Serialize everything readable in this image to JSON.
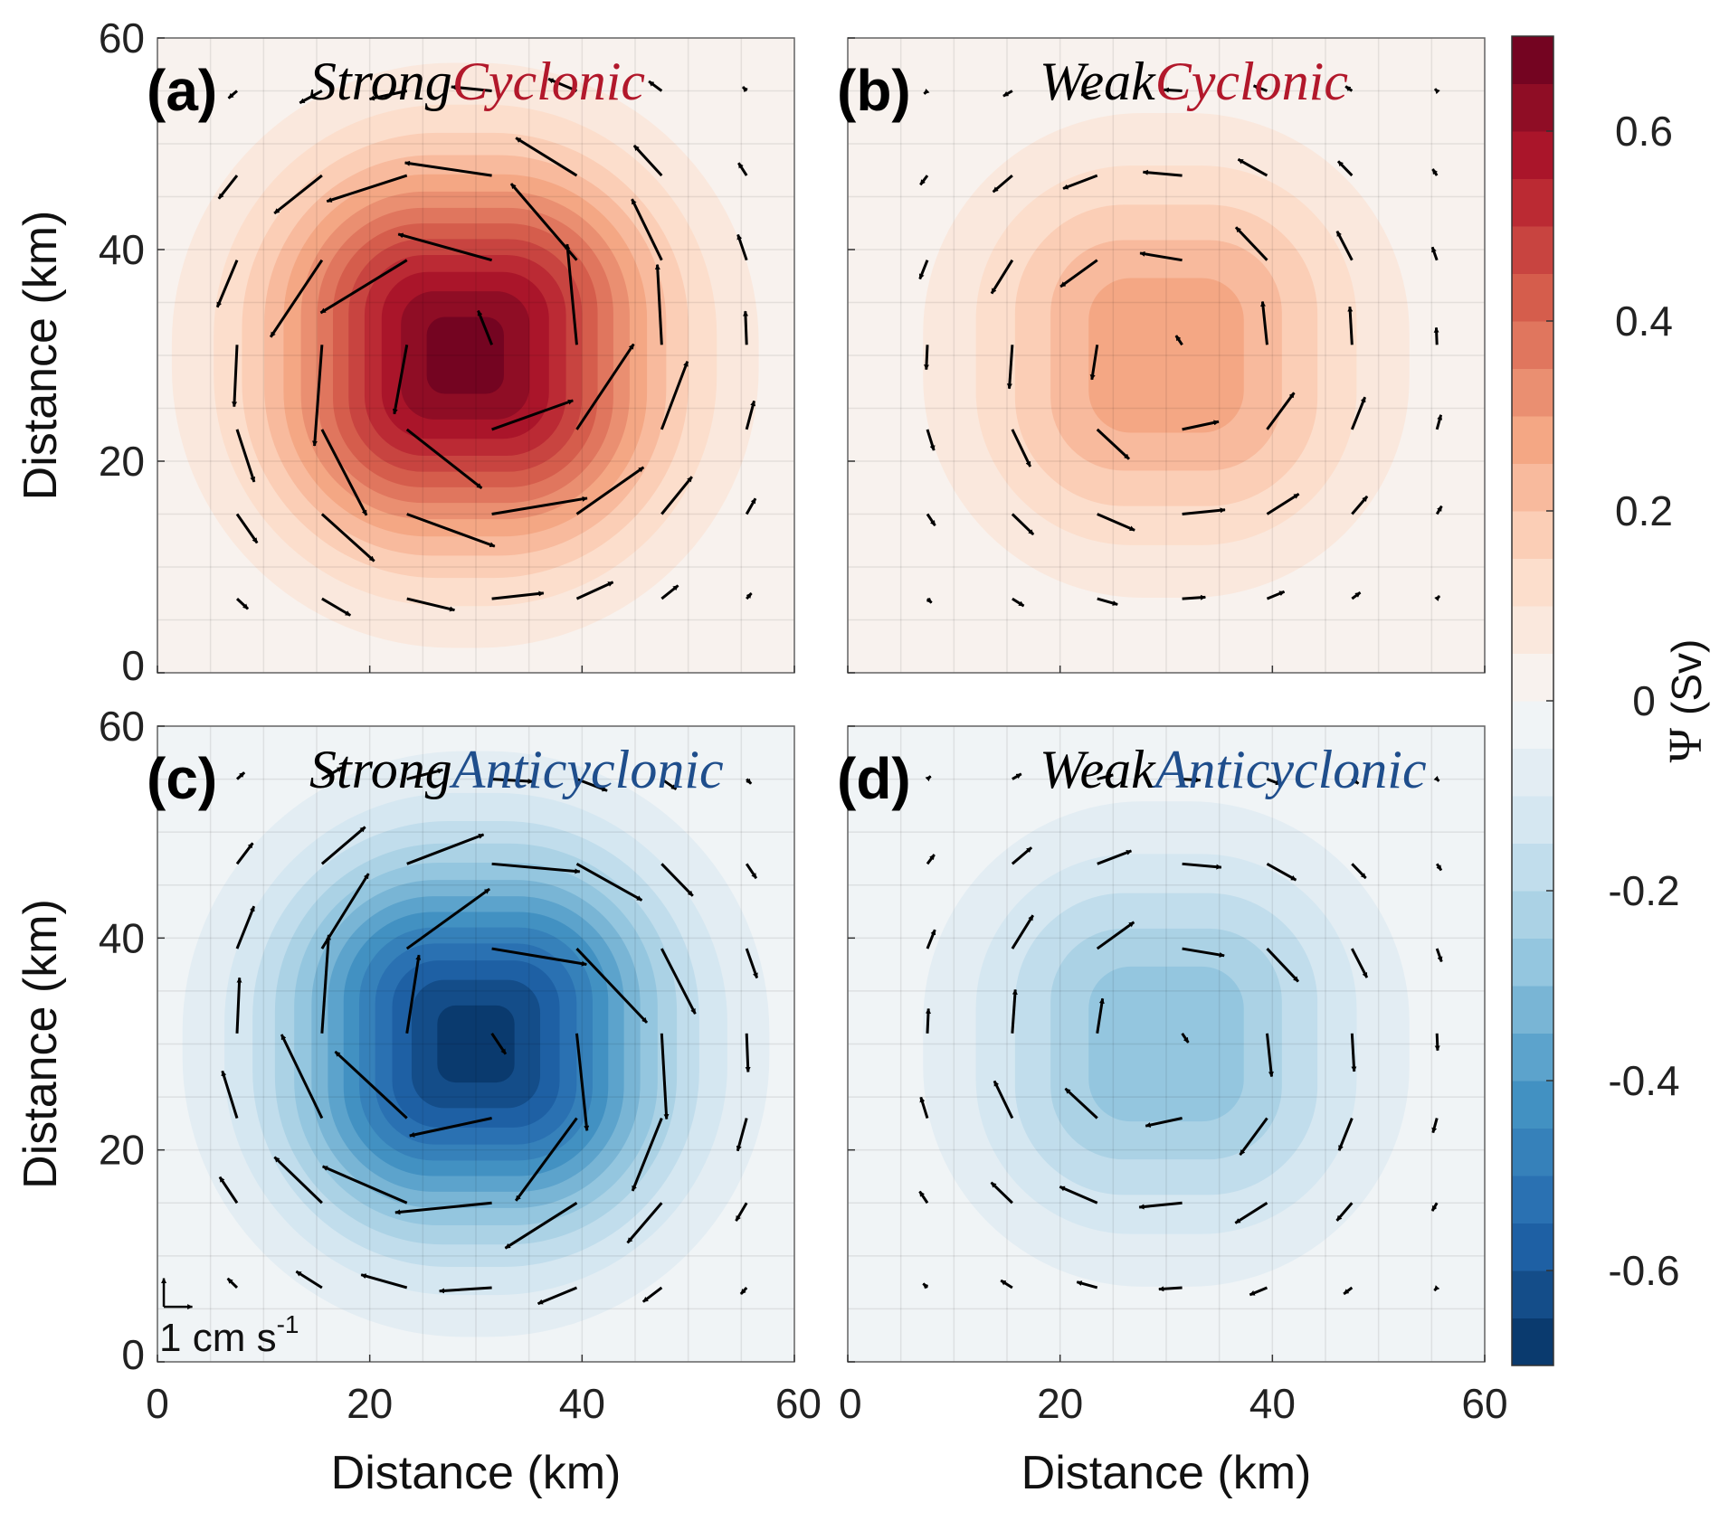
{
  "chart_data": [
    {
      "type": "heatmap",
      "panel_label": "(a)",
      "title_part1": "Strong",
      "title_part2": "Cyclonic",
      "title_color": "#b2182b",
      "xlabel": "",
      "ylabel": "Distance (km)",
      "xlim": [
        0,
        60
      ],
      "ylim": [
        0,
        60
      ],
      "x_ticks": [
        "0",
        "20",
        "40",
        "60"
      ],
      "y_ticks": [
        "0",
        "20",
        "40",
        "60"
      ],
      "field": {
        "peak_psi": 0.68,
        "center": [
          29,
          30
        ],
        "half_width_km": 22
      },
      "velocity_rotation": "counterclockwise",
      "max_speed": 2.7,
      "grid": true
    },
    {
      "type": "heatmap",
      "panel_label": "(b)",
      "title_part1": "Weak",
      "title_part2": "Cyclonic",
      "title_color": "#b2182b",
      "xlabel": "Distance (km)",
      "ylabel": "",
      "xlim": [
        0,
        60
      ],
      "ylim": [
        0,
        60
      ],
      "x_ticks": [
        "0",
        "20",
        "40",
        "60"
      ],
      "y_ticks": [],
      "field": {
        "peak_psi": 0.3,
        "center": [
          30,
          30
        ],
        "half_width_km": 22
      },
      "velocity_rotation": "counterclockwise",
      "max_speed": 1.2,
      "grid": true
    },
    {
      "type": "heatmap",
      "panel_label": "(c)",
      "title_part1": "Strong",
      "title_part2": "Anticyclonic",
      "title_color": "#1f4e8c",
      "xlabel": "Distance (km)",
      "ylabel": "Distance (km)",
      "xlim": [
        0,
        60
      ],
      "ylim": [
        0,
        60
      ],
      "x_ticks": [
        "0",
        "20",
        "40",
        "60"
      ],
      "y_ticks": [
        "0",
        "20",
        "40",
        "60"
      ],
      "field": {
        "peak_psi": -0.68,
        "center": [
          30,
          30
        ],
        "half_width_km": 22
      },
      "velocity_rotation": "clockwise",
      "max_speed": 2.7,
      "grid": true,
      "scale_arrow": {
        "label": "1 cm s",
        "superscript": "-1"
      }
    },
    {
      "type": "heatmap",
      "panel_label": "(d)",
      "title_part1": "Weak",
      "title_part2": "Anticyclonic",
      "title_color": "#1f4e8c",
      "xlabel": "Distance (km)",
      "ylabel": "",
      "xlim": [
        0,
        60
      ],
      "ylim": [
        0,
        60
      ],
      "x_ticks": [
        "0",
        "20",
        "40",
        "60"
      ],
      "y_ticks": [],
      "field": {
        "peak_psi": -0.3,
        "center": [
          30,
          30
        ],
        "half_width_km": 22
      },
      "velocity_rotation": "clockwise",
      "max_speed": 1.2,
      "grid": true
    }
  ],
  "colorbar": {
    "label_symbol": "Ψ",
    "label_unit": "(Sv)",
    "range": [
      -0.7,
      0.7
    ],
    "levels": 28,
    "ticks": [
      {
        "value": 0.6,
        "text": "0.6"
      },
      {
        "value": 0.4,
        "text": "0.4"
      },
      {
        "value": 0.2,
        "text": "0.2"
      },
      {
        "value": 0.0,
        "text": "0"
      },
      {
        "value": -0.2,
        "text": "-0.2"
      },
      {
        "value": -0.4,
        "text": "-0.4"
      },
      {
        "value": -0.6,
        "text": "-0.6"
      }
    ],
    "colormap": [
      "#053061",
      "#2166ac",
      "#4393c3",
      "#92c5de",
      "#d1e5f0",
      "#f7f7f7",
      "#fddbc7",
      "#f4a582",
      "#d6604d",
      "#b2182b",
      "#67001f"
    ]
  }
}
